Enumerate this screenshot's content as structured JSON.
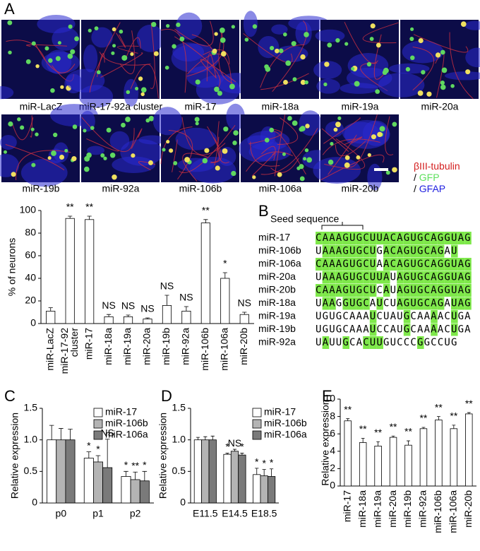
{
  "panel_labels": [
    "A",
    "B",
    "C",
    "D",
    "E"
  ],
  "images": {
    "labels": [
      "miR-LacZ",
      "miR-17-92a cluster",
      "miR-17",
      "miR-18a",
      "miR-19a",
      "miR-20a",
      "miR-19b",
      "miR-92a",
      "miR-106b",
      "miR-106a",
      "miR-20b"
    ],
    "legend": [
      {
        "text": "βIII-tubulin",
        "color": "#d42020"
      },
      {
        "sep": "/",
        "text": "GFP",
        "color": "#5ee05e"
      },
      {
        "sep": "/",
        "text": "GFAP",
        "color": "#2020e0"
      }
    ]
  },
  "alignment": {
    "title": "Seed sequence",
    "rows": [
      {
        "name": "miR-17",
        "sequence": "CAAAGUGCUUACAGUGCAGGUAG"
      },
      {
        "name": "miR-106b",
        "sequence": "UAAAGUGCUGACAGUGCAGAU"
      },
      {
        "name": "miR-106a",
        "sequence": "CAAAGUGCUAACAGUGCAGGUAG"
      },
      {
        "name": "miR-20a",
        "sequence": "UAAAGUGCUUAUAGUGCAGGUAG"
      },
      {
        "name": "miR-20b",
        "sequence": "CAAAGUGCUCAUAGUGCAGGUAG"
      },
      {
        "name": "miR-18a",
        "sequence": "UAAGGUGCAUCUAGUGCAGAUAG"
      },
      {
        "name": "miR-19a",
        "sequence": "UGUGCAAAUCUAUGCAAAACUGA"
      },
      {
        "name": "miR-19b",
        "sequence": "UGUGCAAAUCCAUGCAAAACUGA"
      },
      {
        "name": "miR-92a",
        "sequence": "UAUUGCACUUGUCCCGGCCUG"
      }
    ]
  },
  "chart_data": [
    {
      "type": "bar",
      "y_label": "% of neurons",
      "categories": [
        "miR-LacZ",
        "miR-17-92 cluster",
        "miR-17",
        "miR-18a",
        "miR-19a",
        "miR-20a",
        "miR-19b",
        "miR-92a",
        "miR-106b",
        "miR-106a",
        "miR-20b"
      ],
      "series": [
        {
          "color": "#ffffff",
          "values": [
            11,
            93,
            92,
            6,
            6,
            4,
            16,
            11,
            89,
            40,
            8
          ],
          "errors": [
            3,
            2,
            3,
            2,
            1.5,
            1,
            9,
            4,
            3,
            5,
            2
          ],
          "annotations": [
            null,
            "**",
            "**",
            "NS",
            "NS",
            "NS",
            "NS",
            "NS",
            "**",
            "*",
            "NS"
          ]
        }
      ],
      "ylim": [
        0,
        100
      ],
      "yticks": [
        0,
        20,
        40,
        60,
        80,
        100
      ]
    },
    {
      "type": "bar",
      "y_label": "Relative expression",
      "categories": [
        "p0",
        "p1",
        "p2"
      ],
      "series": [
        {
          "name": "miR-17",
          "color": "#ffffff",
          "values": [
            1,
            0.71,
            0.42
          ],
          "errors": [
            0.23,
            0.1,
            0.08
          ],
          "annotations": [
            null,
            "*",
            "*"
          ]
        },
        {
          "name": "miR-106b",
          "color": "#b4b4b4",
          "values": [
            1,
            0.65,
            0.37
          ],
          "errors": [
            0.18,
            0.1,
            0.12
          ],
          "annotations": [
            null,
            "*",
            "**"
          ]
        },
        {
          "name": "miR-106a",
          "color": "#7a7a7a",
          "values": [
            1,
            0.56,
            0.35
          ],
          "errors": [
            0.17,
            0.45,
            0.15
          ],
          "annotations": [
            null,
            "NS",
            "*"
          ]
        }
      ],
      "ylim": [
        0,
        1.5
      ],
      "yticks": [
        0,
        0.5,
        {
          "value": 1,
          "label": "1.0"
        },
        1.5
      ]
    },
    {
      "type": "bar",
      "y_label": "Relative expression",
      "categories": [
        "E11.5",
        "E14.5",
        "E18.5"
      ],
      "series": [
        {
          "name": "miR-17",
          "color": "#ffffff",
          "values": [
            1,
            0.77,
            0.45
          ],
          "errors": [
            0.04,
            0.02,
            0.1
          ],
          "annotations": [
            null,
            "*",
            "*"
          ]
        },
        {
          "name": "miR-106b",
          "color": "#b4b4b4",
          "values": [
            1,
            0.82,
            0.43
          ],
          "errors": [
            0.05,
            0.03,
            0.1
          ],
          "annotations": [
            null,
            "NS",
            "*"
          ]
        },
        {
          "name": "miR-106a",
          "color": "#7a7a7a",
          "values": [
            1,
            0.76,
            0.42
          ],
          "errors": [
            0.06,
            0.03,
            0.12
          ],
          "annotations": [
            null,
            "*",
            "*"
          ]
        }
      ],
      "ylim": [
        0,
        1.5
      ],
      "yticks": [
        0,
        0.5,
        {
          "value": 1,
          "label": "1.0"
        },
        1.5
      ]
    },
    {
      "type": "bar",
      "y_label": "Relative expression",
      "categories": [
        "miR-17",
        "miR-18a",
        "miR-19a",
        "miR-20a",
        "miR-19b",
        "miR-92a",
        "miR-106b",
        "miR-106a",
        "miR-20b"
      ],
      "series": [
        {
          "color": "#ffffff",
          "values": [
            7.5,
            5.0,
            4.6,
            5.6,
            4.7,
            6.6,
            7.6,
            6.6,
            8.3
          ],
          "errors": [
            0.25,
            0.5,
            0.5,
            0.15,
            0.5,
            0.15,
            0.4,
            0.4,
            0.15
          ],
          "annotations": [
            "**",
            "**",
            "**",
            "**",
            "**",
            "**",
            "**",
            "**",
            "**"
          ]
        }
      ],
      "ylim": [
        0,
        10
      ],
      "yticks": [
        0,
        2,
        4,
        6,
        8,
        10
      ]
    }
  ]
}
